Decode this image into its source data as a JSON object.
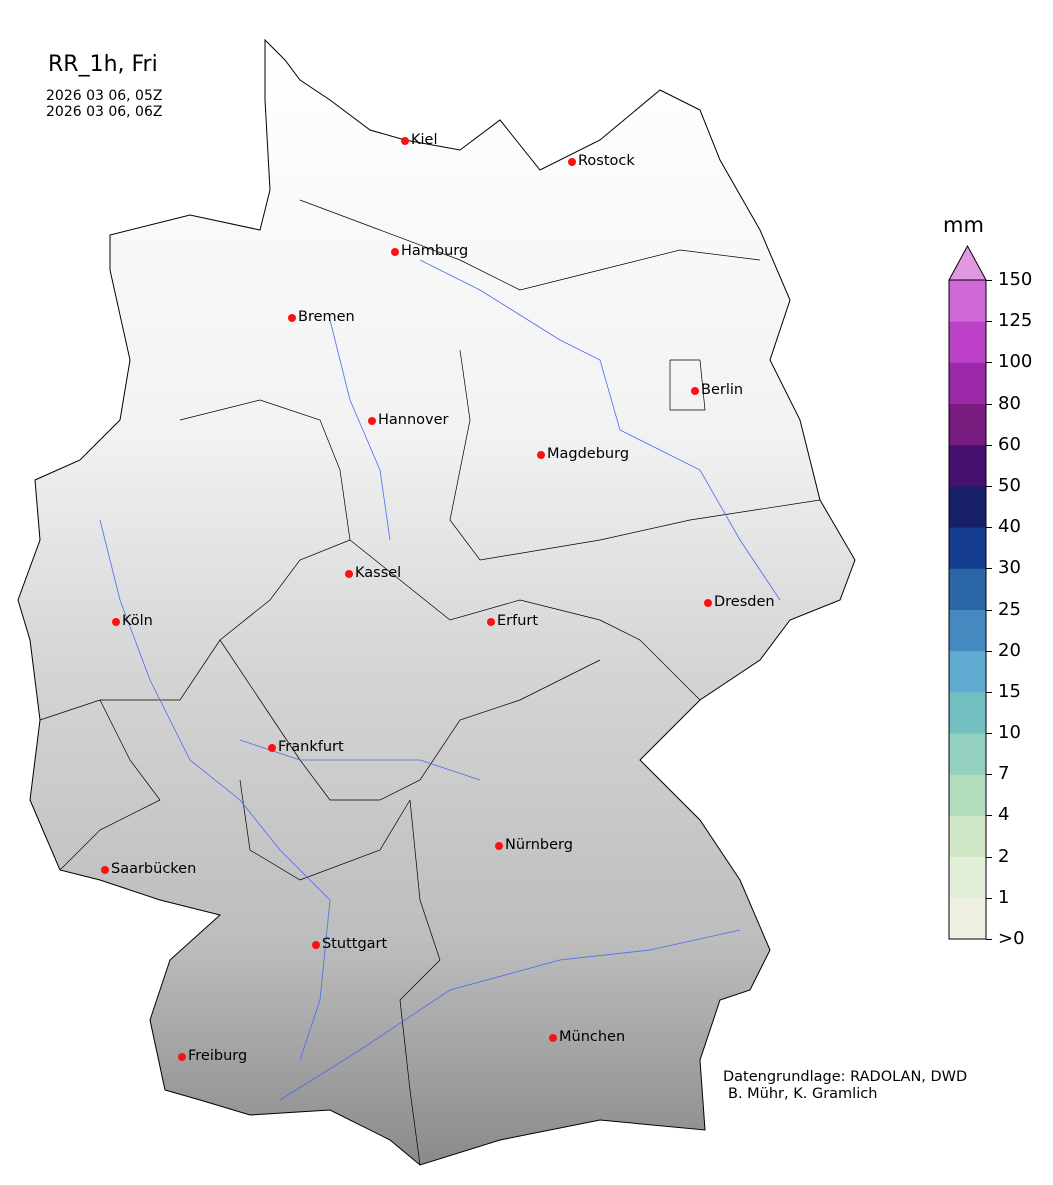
{
  "title": "RR_1h, Fri",
  "date_start": "2026 03 06, 05Z",
  "date_end": "2026 03 06, 06Z",
  "cities": [
    "Kiel",
    "Rostock",
    "Hamburg",
    "Bremen",
    "Berlin",
    "Hannover",
    "Magdeburg",
    "Kassel",
    "Dresden",
    "Köln",
    "Erfurt",
    "Frankfurt",
    "Nürnberg",
    "Saarbücken",
    "Stuttgart",
    "München",
    "Freiburg"
  ],
  "colorbar": {
    "unit": "mm",
    "labels": [
      ">0",
      "1",
      "2",
      "4",
      "7",
      "10",
      "15",
      "20",
      "25",
      "30",
      "40",
      "50",
      "60",
      "80",
      "100",
      "125",
      "150"
    ],
    "colors": [
      "#f0f0e0",
      "#e2efd8",
      "#d0e7c6",
      "#b2dcbb",
      "#94d0c0",
      "#72bfc2",
      "#5eaad0",
      "#448ac0",
      "#2a66a8",
      "#163e90",
      "#182068",
      "#461070",
      "#781c80",
      "#9c2aa8",
      "#bc40c8",
      "#d068d8"
    ],
    "extend_color": "#e098e0"
  },
  "credit_line1": "Datengrundlage: RADOLAN, DWD",
  "credit_line2": "B. Mühr, K. Gramlich",
  "colors": {
    "city_marker": "#ff1010",
    "rivers": "#4a6cf0",
    "borders": "#000000"
  }
}
